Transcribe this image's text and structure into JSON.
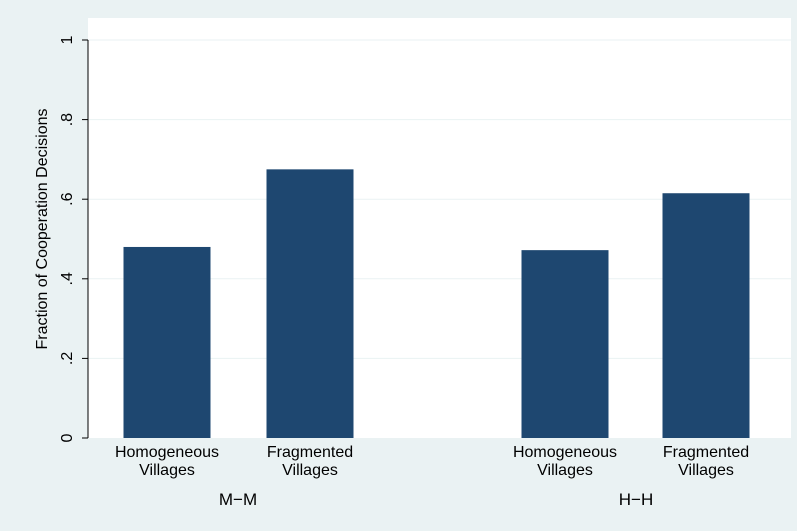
{
  "chart_data": {
    "type": "bar",
    "ylabel": "Fraction of Cooperation Decisions",
    "ylim": [
      0,
      1
    ],
    "yticks": [
      {
        "value": 0,
        "label": "0"
      },
      {
        "value": 0.2,
        "label": ".2"
      },
      {
        "value": 0.4,
        "label": ".4"
      },
      {
        "value": 0.6,
        "label": ".6"
      },
      {
        "value": 0.8,
        "label": ".8"
      },
      {
        "value": 1,
        "label": "1"
      }
    ],
    "grid": true,
    "groups": [
      {
        "label": "M−M",
        "bars": [
          {
            "category": [
              "Homogeneous",
              "Villages"
            ],
            "value": 0.48
          },
          {
            "category": [
              "Fragmented",
              "Villages"
            ],
            "value": 0.675
          }
        ]
      },
      {
        "label": "H−H",
        "bars": [
          {
            "category": [
              "Homogeneous",
              "Villages"
            ],
            "value": 0.472
          },
          {
            "category": [
              "Fragmented",
              "Villages"
            ],
            "value": 0.615
          }
        ]
      }
    ],
    "colors": {
      "bar": "#1e4770",
      "plot_background": "#ffffff",
      "outer_background": "#eaf2f3",
      "grid": "#eaf2f3",
      "axis": "#000000"
    }
  }
}
